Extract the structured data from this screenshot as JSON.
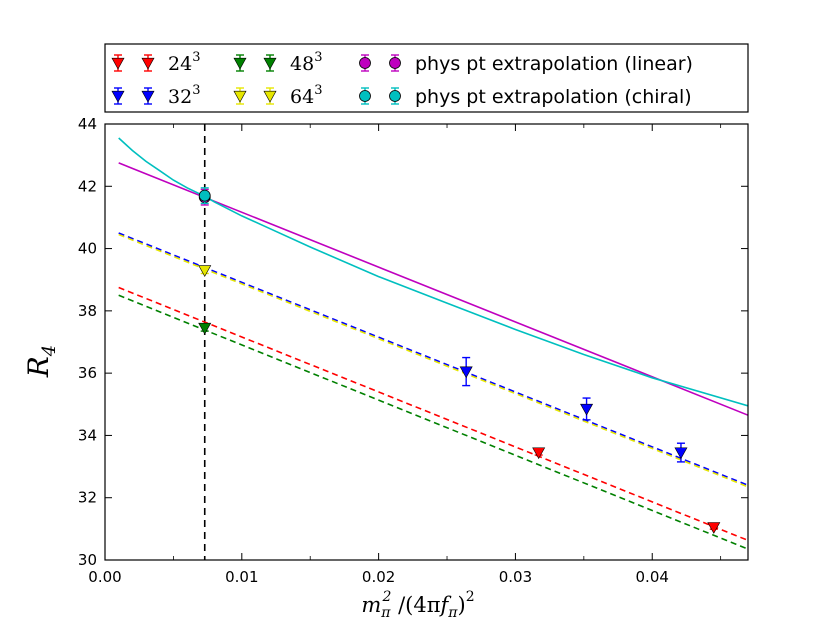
{
  "chart_data": {
    "type": "scatter",
    "title": "",
    "xlabel": "m_π² /(4πf_π)²",
    "xlabel_parts": {
      "m": "m",
      "pi_sub": "π",
      "two_sup": "2",
      "slash": " /(4π",
      "f": "f",
      "pi_sub2": "π",
      "close": ")",
      "two_sup2": "2"
    },
    "ylabel": "R",
    "ylabel_sub": "4",
    "xlim": [
      0.0,
      0.047
    ],
    "ylim": [
      30,
      44
    ],
    "xticks": [
      0.0,
      0.01,
      0.02,
      0.03,
      0.04
    ],
    "xtick_labels": [
      "0.00",
      "0.01",
      "0.02",
      "0.03",
      "0.04"
    ],
    "yticks": [
      30,
      32,
      34,
      36,
      38,
      40,
      42,
      44
    ],
    "ytick_labels": [
      "30",
      "32",
      "34",
      "36",
      "38",
      "40",
      "42",
      "44"
    ],
    "vline_x": 0.00729,
    "legend_position": "top, outside plot",
    "series": [
      {
        "name_base": "24",
        "name_sup": "3",
        "color": "#ff0000",
        "marker": "triangle-down",
        "points": [
          {
            "x": 0.0317,
            "y": 33.45,
            "err": 0.08
          },
          {
            "x": 0.0445,
            "y": 31.05,
            "err": 0.06
          }
        ],
        "fit": {
          "style": "dashed",
          "x0": 0.001,
          "y0": 38.75,
          "x1": 0.047,
          "y1": 30.63
        }
      },
      {
        "name_base": "32",
        "name_sup": "3",
        "color": "#0000ff",
        "marker": "triangle-down",
        "points": [
          {
            "x": 0.0264,
            "y": 36.05,
            "err": 0.45
          },
          {
            "x": 0.0352,
            "y": 34.85,
            "err": 0.35
          },
          {
            "x": 0.0421,
            "y": 33.45,
            "err": 0.3
          }
        ],
        "fit": {
          "style": "dashed",
          "x0": 0.001,
          "y0": 40.5,
          "x1": 0.047,
          "y1": 32.4
        }
      },
      {
        "name_base": "48",
        "name_sup": "3",
        "color": "#008000",
        "marker": "triangle-down",
        "points": [
          {
            "x": 0.00729,
            "y": 37.45,
            "err": 0.1
          }
        ],
        "fit": {
          "style": "dashed",
          "x0": 0.001,
          "y0": 38.5,
          "x1": 0.047,
          "y1": 30.35
        }
      },
      {
        "name_base": "64",
        "name_sup": "3",
        "color": "#e6e600",
        "marker": "triangle-down",
        "points": [
          {
            "x": 0.00729,
            "y": 39.3,
            "err": 0.1
          }
        ],
        "fit": {
          "style": "dashed",
          "x0": 0.001,
          "y0": 40.45,
          "x1": 0.047,
          "y1": 32.35
        }
      },
      {
        "name": "phys pt extrapolation (linear)",
        "color": "#bf00bf",
        "marker": "circle",
        "points": [
          {
            "x": 0.00729,
            "y": 41.65,
            "err": 0.25
          }
        ],
        "fit": {
          "style": "solid",
          "x0": 0.001,
          "y0": 42.75,
          "x1": 0.047,
          "y1": 34.65
        }
      },
      {
        "name": "phys pt extrapolation (chiral)",
        "color": "#00bfbf",
        "marker": "circle",
        "points": [
          {
            "x": 0.00729,
            "y": 41.7,
            "err": 0.25
          }
        ],
        "fit": {
          "style": "solid",
          "curve": "chiral",
          "x": [
            0.001,
            0.002,
            0.003,
            0.004,
            0.005,
            0.006,
            0.00729,
            0.008,
            0.01,
            0.012,
            0.015,
            0.02,
            0.025,
            0.03,
            0.035,
            0.04,
            0.047
          ],
          "y": [
            43.55,
            43.15,
            42.8,
            42.5,
            42.2,
            41.95,
            41.68,
            41.5,
            41.05,
            40.65,
            40.05,
            39.1,
            38.25,
            37.4,
            36.6,
            35.85,
            34.95
          ]
        }
      }
    ]
  }
}
